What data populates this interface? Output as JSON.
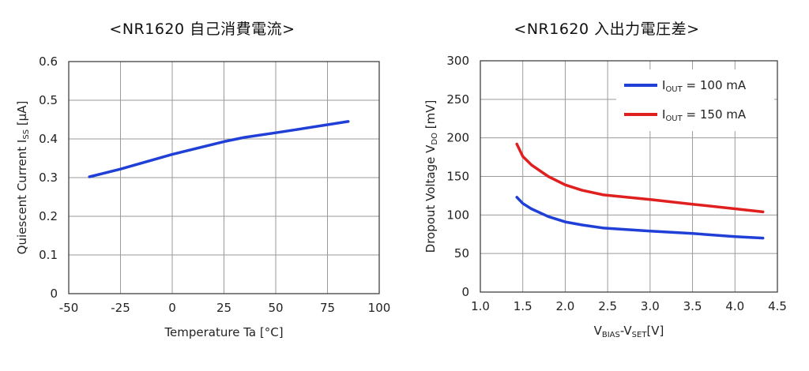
{
  "chart_data": [
    {
      "type": "line",
      "title": "<NR1620 自己消費電流>",
      "xlabel": "Temperature  Ta [°C]",
      "ylabel": {
        "main": "Quiescent Current I",
        "sub": "SS",
        "unit": " [µA]"
      },
      "xlim": [
        -50,
        100
      ],
      "ylim": [
        0,
        0.6
      ],
      "xticks": [
        -50,
        -25,
        0,
        25,
        50,
        75,
        100
      ],
      "yticks": [
        0,
        0.1,
        0.2,
        0.3,
        0.4,
        0.5,
        0.6
      ],
      "ytick_labels": [
        "0",
        "0.1",
        "0.2",
        "0.3",
        "0.4",
        "0.5",
        "0.6"
      ],
      "grid": true,
      "series": [
        {
          "color": "#1f3fd6",
          "x": [
            -40,
            -25,
            0,
            25,
            35,
            50,
            60,
            85
          ],
          "y": [
            0.302,
            0.322,
            0.36,
            0.393,
            0.404,
            0.416,
            0.424,
            0.445
          ]
        }
      ]
    },
    {
      "type": "line",
      "title": "<NR1620 入出力電圧差>",
      "xlabel": {
        "parts": [
          "V",
          "BIAS",
          "-V",
          "SET",
          "[V]"
        ]
      },
      "ylabel": {
        "main": "Dropout Voltage V",
        "sub": "DO",
        "unit": " [mV]"
      },
      "xlim": [
        1.0,
        4.5
      ],
      "ylim": [
        0,
        300
      ],
      "xticks": [
        1.0,
        1.5,
        2.0,
        2.5,
        3.0,
        3.5,
        4.0,
        4.5
      ],
      "xtick_labels": [
        "1.0",
        "1.5",
        "2.0",
        "2.5",
        "3.0",
        "3.5",
        "4.0",
        "4.5"
      ],
      "yticks": [
        0,
        50,
        100,
        150,
        200,
        250,
        300
      ],
      "grid": true,
      "legend_position": "top-right",
      "series": [
        {
          "name": {
            "main": "I",
            "sub": "OUT",
            "rest": " = 100 mA"
          },
          "color": "#1f3fd6",
          "x": [
            1.43,
            1.5,
            1.6,
            1.8,
            2.0,
            2.2,
            2.45,
            3.0,
            3.5,
            4.0,
            4.33
          ],
          "y": [
            123,
            115,
            108,
            98,
            91,
            87,
            83,
            79,
            76,
            72,
            70
          ]
        },
        {
          "name": {
            "main": "I",
            "sub": "OUT",
            "rest": " = 150 mA"
          },
          "color": "#e01f1f",
          "x": [
            1.43,
            1.5,
            1.6,
            1.8,
            2.0,
            2.2,
            2.45,
            3.0,
            3.5,
            4.0,
            4.33
          ],
          "y": [
            192,
            176,
            165,
            150,
            139,
            132,
            126,
            120,
            114,
            108,
            104
          ]
        }
      ]
    }
  ]
}
